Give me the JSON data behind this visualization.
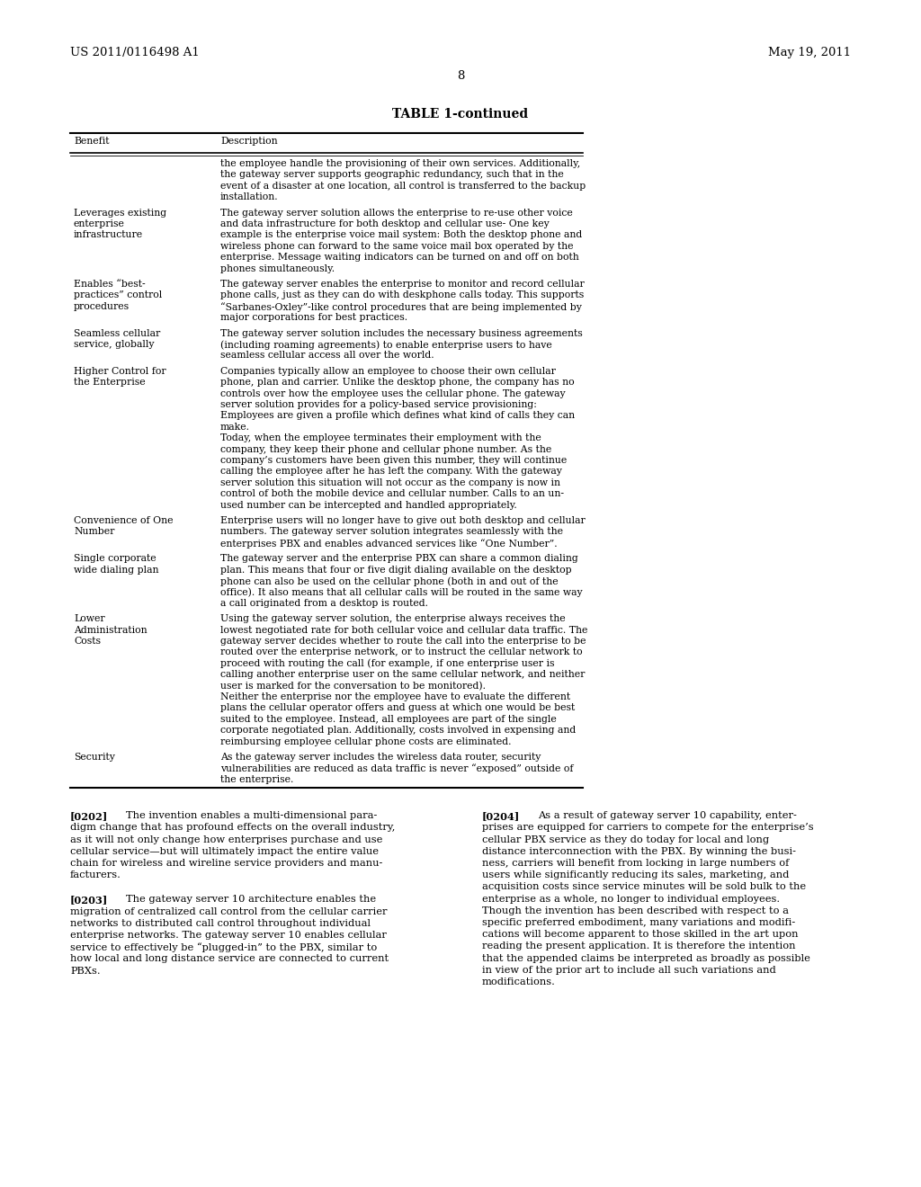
{
  "header_left": "US 2011/0116498 A1",
  "header_right": "May 19, 2011",
  "page_number": "8",
  "table_title": "TABLE 1-continued",
  "col1_header": "Benefit",
  "col2_header": "Description",
  "table_rows": [
    {
      "benefit": "",
      "description": "the employee handle the provisioning of their own services. Additionally,\nthe gateway server supports geographic redundancy, such that in the\nevent of a disaster at one location, all control is transferred to the backup\ninstallation."
    },
    {
      "benefit": "Leverages existing\nenterprise\ninfrastructure",
      "description": "The gateway server solution allows the enterprise to re-use other voice\nand data infrastructure for both desktop and cellular use- One key\nexample is the enterprise voice mail system: Both the desktop phone and\nwireless phone can forward to the same voice mail box operated by the\nenterprise. Message waiting indicators can be turned on and off on both\nphones simultaneously."
    },
    {
      "benefit": "Enables “best-\npractices” control\nprocedures",
      "description": "The gateway server enables the enterprise to monitor and record cellular\nphone calls, just as they can do with deskphone calls today. This supports\n“Sarbanes-Oxley”-like control procedures that are being implemented by\nmajor corporations for best practices."
    },
    {
      "benefit": "Seamless cellular\nservice, globally",
      "description": "The gateway server solution includes the necessary business agreements\n(including roaming agreements) to enable enterprise users to have\nseamless cellular access all over the world."
    },
    {
      "benefit": "Higher Control for\nthe Enterprise",
      "description": "Companies typically allow an employee to choose their own cellular\nphone, plan and carrier. Unlike the desktop phone, the company has no\ncontrols over how the employee uses the cellular phone. The gateway\nserver solution provides for a policy-based service provisioning:\nEmployees are given a profile which defines what kind of calls they can\nmake.\nToday, when the employee terminates their employment with the\ncompany, they keep their phone and cellular phone number. As the\ncompany’s customers have been given this number, they will continue\ncalling the employee after he has left the company. With the gateway\nserver solution this situation will not occur as the company is now in\ncontrol of both the mobile device and cellular number. Calls to an un-\nused number can be intercepted and handled appropriately."
    },
    {
      "benefit": "Convenience of One\nNumber",
      "description": "Enterprise users will no longer have to give out both desktop and cellular\nnumbers. The gateway server solution integrates seamlessly with the\nenterprises PBX and enables advanced services like “One Number”."
    },
    {
      "benefit": "Single corporate\nwide dialing plan",
      "description": "The gateway server and the enterprise PBX can share a common dialing\nplan. This means that four or five digit dialing available on the desktop\nphone can also be used on the cellular phone (both in and out of the\noffice). It also means that all cellular calls will be routed in the same way\na call originated from a desktop is routed."
    },
    {
      "benefit": "Lower\nAdministration\nCosts",
      "description": "Using the gateway server solution, the enterprise always receives the\nlowest negotiated rate for both cellular voice and cellular data traffic. The\ngateway server decides whether to route the call into the enterprise to be\nrouted over the enterprise network, or to instruct the cellular network to\nproceed with routing the call (for example, if one enterprise user is\ncalling another enterprise user on the same cellular network, and neither\nuser is marked for the conversation to be monitored).\nNeither the enterprise nor the employee have to evaluate the different\nplans the cellular operator offers and guess at which one would be best\nsuited to the employee. Instead, all employees are part of the single\ncorporate negotiated plan. Additionally, costs involved in expensing and\nreimbursing employee cellular phone costs are eliminated."
    },
    {
      "benefit": "Security",
      "description": "As the gateway server includes the wireless data router, security\nvulnerabilities are reduced as data traffic is never “exposed” outside of\nthe enterprise."
    }
  ],
  "paragraphs": [
    {
      "number": "[0202]",
      "text": "The invention enables a multi-dimensional para-\ndigm change that has profound effects on the overall industry,\nas it will not only change how enterprises purchase and use\ncellular service—but will ultimately impact the entire value\nchain for wireless and wireline service providers and manu-\nfacturers."
    },
    {
      "number": "[0203]",
      "text": "The gateway server 10 architecture enables the\nmigration of centralized call control from the cellular carrier\nnetworks to distributed call control throughout individual\nenterprise networks. The gateway server 10 enables cellular\nservice to effectively be “plugged-in” to the PBX, similar to\nhow local and long distance service are connected to current\nPBXs."
    },
    {
      "number": "[0204]",
      "text": "As a result of gateway server 10 capability, enter-\nprises are equipped for carriers to compete for the enterprise’s\ncellular PBX service as they do today for local and long\ndistance interconnection with the PBX. By winning the busi-\nness, carriers will benefit from locking in large numbers of\nusers while significantly reducing its sales, marketing, and\nacquisition costs since service minutes will be sold bulk to the\nenterprise as a whole, no longer to individual employees.\nThough the invention has been described with respect to a\nspecific preferred embodiment, many variations and modifi-\ncations will become apparent to those skilled in the art upon\nreading the present application. It is therefore the intention\nthat the appended claims be interpreted as broadly as possible\nin view of the prior art to include all such variations and\nmodifications."
    }
  ],
  "background_color": "#ffffff",
  "text_color": "#000000"
}
